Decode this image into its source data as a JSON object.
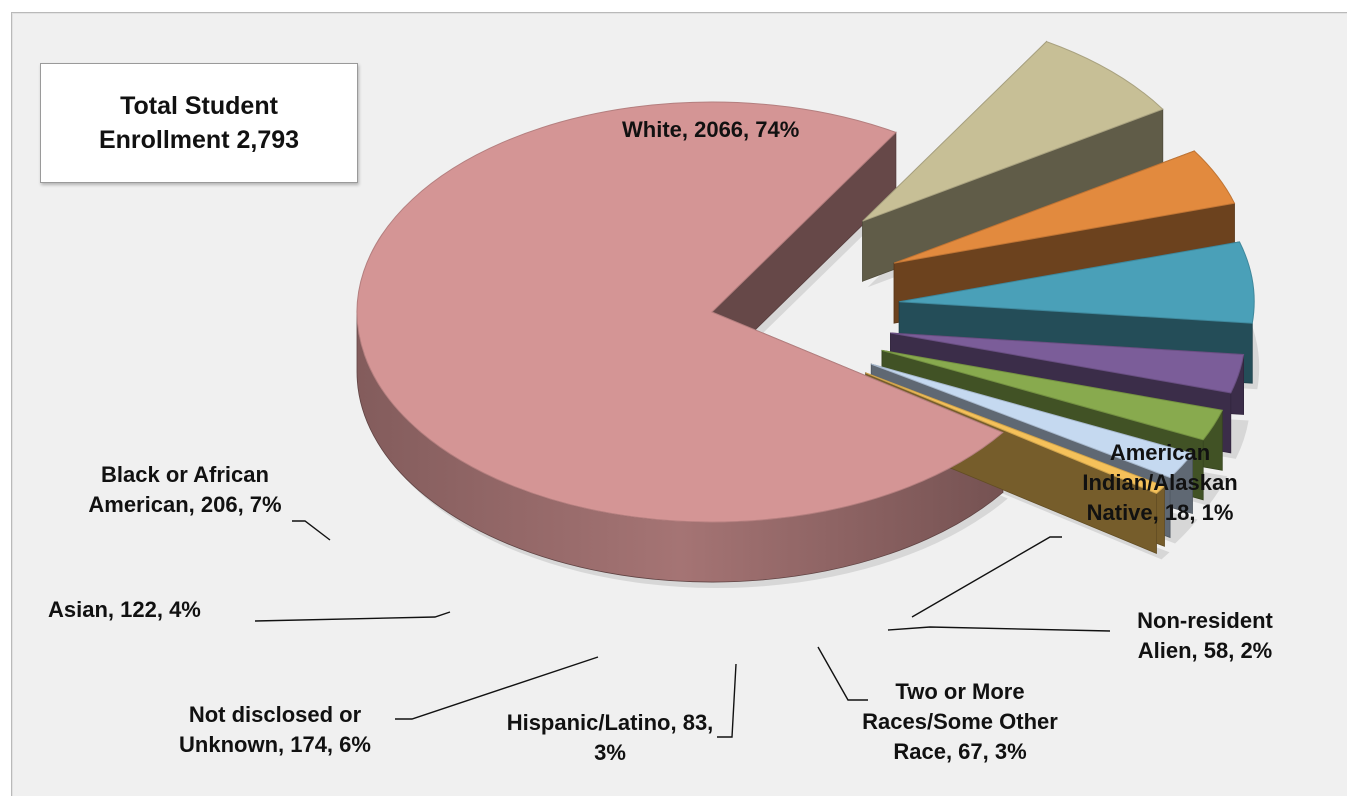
{
  "total_box": {
    "text": "Total Student Enrollment 2,793"
  },
  "chart_data": {
    "type": "pie",
    "title": "",
    "total": 2793,
    "labels": {
      "white": "White, 2066, 74%",
      "black": "Black or African American, 206, 7%",
      "asian": "Asian, 122, 4%",
      "notdisc": "Not disclosed or Unknown, 174, 6%",
      "hispanic": "Hispanic/Latino, 83, 3%",
      "twoormore": "Two or More Races/Some Other Race, 67, 3%",
      "nonres": "Non-resident Alien, 58, 2%",
      "amind": "American Indian/Alaskan Native, 18, 1%"
    },
    "slices": [
      {
        "key": "white",
        "label": "White",
        "value": 2066,
        "percent": 74,
        "color": "#d49595"
      },
      {
        "key": "black",
        "label": "Black or African American",
        "value": 206,
        "percent": 7,
        "color": "#c7bf96"
      },
      {
        "key": "asian",
        "label": "Asian",
        "value": 122,
        "percent": 4,
        "color": "#e28a3e"
      },
      {
        "key": "notdisc",
        "label": "Not disclosed or Unknown",
        "value": 174,
        "percent": 6,
        "color": "#4aa0b8"
      },
      {
        "key": "hispanic",
        "label": "Hispanic/Latino",
        "value": 83,
        "percent": 3,
        "color": "#7b5d99"
      },
      {
        "key": "twoormore",
        "label": "Two or More Races/Some Other Race",
        "value": 67,
        "percent": 3,
        "color": "#88aa4e"
      },
      {
        "key": "nonres",
        "label": "Non-resident Alien",
        "value": 58,
        "percent": 2,
        "color": "#c5d9f0"
      },
      {
        "key": "amind",
        "label": "American Indian/Alaskan Native",
        "value": 18,
        "percent": 1,
        "color": "#f5c15a"
      }
    ]
  }
}
